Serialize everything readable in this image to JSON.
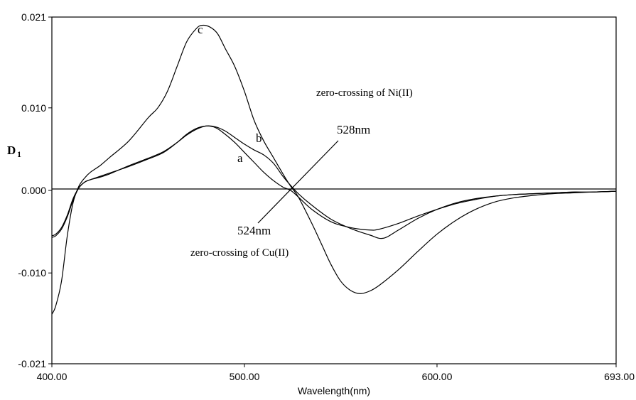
{
  "chart_data": {
    "type": "line",
    "xlabel": "Wavelength(nm)",
    "ylabel": "D",
    "ylabel_subscript": "1",
    "xlim": [
      400,
      693
    ],
    "ylim": [
      -0.021,
      0.021
    ],
    "x_ticks": [
      {
        "value": 400,
        "label": "400.00"
      },
      {
        "value": 500,
        "label": "500.00"
      },
      {
        "value": 600,
        "label": "600.00"
      },
      {
        "value": 693,
        "label": "693.00"
      }
    ],
    "y_ticks": [
      {
        "value": 0.021,
        "label": "0.021"
      },
      {
        "value": 0.01,
        "label": "0.010"
      },
      {
        "value": 0.0,
        "label": "0.000"
      },
      {
        "value": -0.01,
        "label": "-0.010"
      },
      {
        "value": -0.021,
        "label": "-0.021"
      }
    ],
    "zero_line": true,
    "series": [
      {
        "id": "a",
        "label": "a",
        "x": [
          400,
          402,
          405,
          408,
          411,
          414,
          417,
          420,
          425,
          430,
          440,
          450,
          458,
          465,
          470,
          475,
          480,
          485,
          490,
          495,
          500,
          505,
          510,
          515,
          520,
          524,
          528,
          535,
          545,
          555,
          565,
          570,
          580,
          590,
          600,
          610,
          620,
          630,
          640,
          650,
          660,
          670,
          680,
          693
        ],
        "y": [
          -0.0055,
          -0.0053,
          -0.0045,
          -0.003,
          -0.001,
          0.0003,
          0.001,
          0.0013,
          0.0017,
          0.0021,
          0.0029,
          0.0038,
          0.0046,
          0.0058,
          0.0068,
          0.0075,
          0.0078,
          0.0076,
          0.0068,
          0.0058,
          0.0046,
          0.0034,
          0.0022,
          0.0012,
          0.0004,
          0.0,
          -0.0008,
          -0.0023,
          -0.0038,
          -0.0045,
          -0.0048,
          -0.0047,
          -0.004,
          -0.0031,
          -0.0023,
          -0.0016,
          -0.0011,
          -0.0007,
          -0.0005,
          -0.0004,
          -0.0003,
          -0.0002,
          -0.0002,
          -0.0001
        ]
      },
      {
        "id": "b",
        "label": "b",
        "x": [
          400,
          402,
          405,
          408,
          411,
          414,
          417,
          420,
          425,
          430,
          440,
          450,
          458,
          465,
          470,
          475,
          480,
          485,
          490,
          495,
          500,
          505,
          510,
          515,
          520,
          524,
          528,
          535,
          545,
          555,
          565,
          572,
          580,
          590,
          600,
          610,
          620,
          630,
          640,
          650,
          660,
          670,
          680,
          693
        ],
        "y": [
          -0.0057,
          -0.0055,
          -0.0047,
          -0.0032,
          -0.0012,
          0.0003,
          0.001,
          0.0013,
          0.0016,
          0.002,
          0.003,
          0.0039,
          0.0047,
          0.0058,
          0.0067,
          0.0074,
          0.0078,
          0.0077,
          0.0072,
          0.0064,
          0.0056,
          0.0049,
          0.0043,
          0.0033,
          0.0017,
          0.0006,
          -0.0004,
          -0.0018,
          -0.0035,
          -0.0046,
          -0.0054,
          -0.0058,
          -0.0048,
          -0.0034,
          -0.0023,
          -0.0015,
          -0.001,
          -0.0007,
          -0.0005,
          -0.0004,
          -0.0003,
          -0.0002,
          -0.0002,
          -0.0001
        ]
      },
      {
        "id": "c",
        "label": "c",
        "x": [
          400,
          402,
          405,
          408,
          411,
          414,
          417,
          420,
          425,
          430,
          440,
          450,
          455,
          460,
          465,
          470,
          475,
          478,
          482,
          486,
          490,
          495,
          500,
          505,
          510,
          515,
          520,
          524,
          528,
          535,
          540,
          545,
          550,
          555,
          560,
          565,
          570,
          580,
          590,
          600,
          610,
          620,
          630,
          640,
          650,
          660,
          670,
          680,
          693
        ],
        "y": [
          -0.015,
          -0.014,
          -0.011,
          -0.0055,
          -0.0015,
          0.0005,
          0.0015,
          0.0022,
          0.003,
          0.004,
          0.006,
          0.0088,
          0.01,
          0.012,
          0.015,
          0.018,
          0.0196,
          0.02,
          0.0198,
          0.019,
          0.0172,
          0.015,
          0.012,
          0.0085,
          0.006,
          0.004,
          0.002,
          0.0005,
          -0.0008,
          -0.004,
          -0.0065,
          -0.009,
          -0.011,
          -0.0121,
          -0.0125,
          -0.0122,
          -0.0115,
          -0.0096,
          -0.0074,
          -0.0053,
          -0.0036,
          -0.0023,
          -0.0014,
          -0.0009,
          -0.0006,
          -0.0004,
          -0.0003,
          -0.0002,
          -0.0001
        ]
      }
    ],
    "annotations": {
      "ni_zero_crossing": "zero-crossing of Ni(II)",
      "cu_zero_crossing": "zero-crossing of Cu(II)",
      "wl_528": "528nm",
      "wl_524": "524nm",
      "label_a": "a",
      "label_b": "b",
      "label_c": "c"
    },
    "legend": "none",
    "grid": false
  }
}
